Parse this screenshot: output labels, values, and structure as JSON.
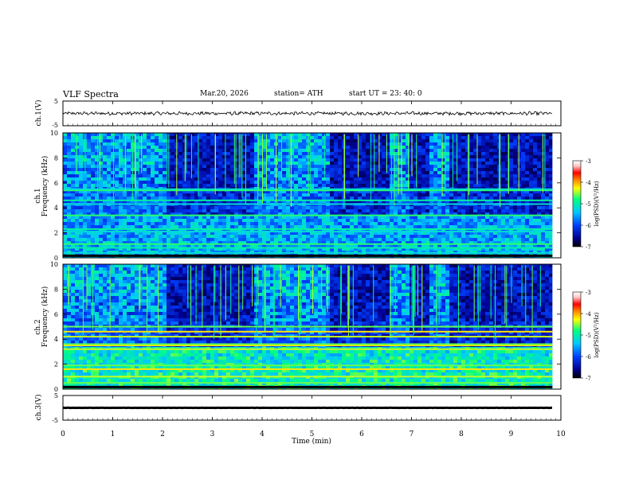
{
  "header": {
    "title": "VLF  Spectra",
    "date": "Mar.20, 2026",
    "station": "station= ATH",
    "start": "start  UT  =    23: 40: 0"
  },
  "panels": {
    "ch1_label": "ch.1(V)",
    "ch3_label": "ch.3(V)",
    "spec1_label": "ch.1",
    "spec2_label": "ch.2",
    "freq_label": "Frequency  (kHz)",
    "waveform_ticks": [
      "5",
      "-5"
    ],
    "freq_ticks": [
      "0",
      "2",
      "4",
      "6",
      "8",
      "10"
    ]
  },
  "colorbar": {
    "label": "log(PSD)(V²/Hz)",
    "ticks": [
      "-3",
      "-4",
      "-5",
      "-6",
      "-7"
    ],
    "colors": [
      "#000000",
      "#000090",
      "#0040ff",
      "#00c8ff",
      "#00ff80",
      "#ffff00",
      "#ff8000",
      "#ff0000",
      "#ffc8c8",
      "#ffffff"
    ]
  },
  "chart_data": {
    "type": "heatmap",
    "title": "VLF  Spectra",
    "xlabel": "Time  (min)",
    "x_ticks": [
      "0",
      "1",
      "2",
      "3",
      "4",
      "5",
      "6",
      "7",
      "8",
      "9",
      "10"
    ],
    "xlim": [
      0,
      10
    ],
    "data_end_min": 9.83,
    "series": [
      {
        "name": "ch.1(V)",
        "type": "line",
        "ylim": [
          -5,
          5
        ],
        "mean": 0,
        "amplitude": 0.6
      },
      {
        "name": "ch.1",
        "type": "spectrogram",
        "ylabel": "Frequency  (kHz)",
        "ylim": [
          0,
          10
        ],
        "zlim": [
          -7,
          -3
        ],
        "quiet_intervals_min": [
          [
            2.08,
            3.8
          ],
          [
            5.3,
            6.5
          ],
          [
            6.9,
            7.3
          ],
          [
            7.75,
            9.83
          ]
        ],
        "bands_khz": [
          0.4,
          0.8,
          1.1,
          2.1,
          2.3,
          3.4,
          4.3,
          4.6,
          5.4,
          5.5
        ]
      },
      {
        "name": "ch.2",
        "type": "spectrogram",
        "ylabel": "Frequency  (kHz)",
        "ylim": [
          0,
          10
        ],
        "zlim": [
          -7,
          -3
        ],
        "quiet_intervals_min": [
          [
            2.08,
            3.8
          ],
          [
            5.3,
            6.5
          ],
          [
            6.9,
            7.3
          ],
          [
            7.75,
            9.83
          ]
        ],
        "bands_khz": [
          0.5,
          1.0,
          1.6,
          1.9,
          3.2,
          3.5,
          3.6,
          4.2,
          4.6,
          5.0
        ]
      },
      {
        "name": "ch.3(V)",
        "type": "line",
        "ylim": [
          -5,
          5
        ],
        "mean": 0,
        "amplitude": 0.1
      }
    ]
  }
}
